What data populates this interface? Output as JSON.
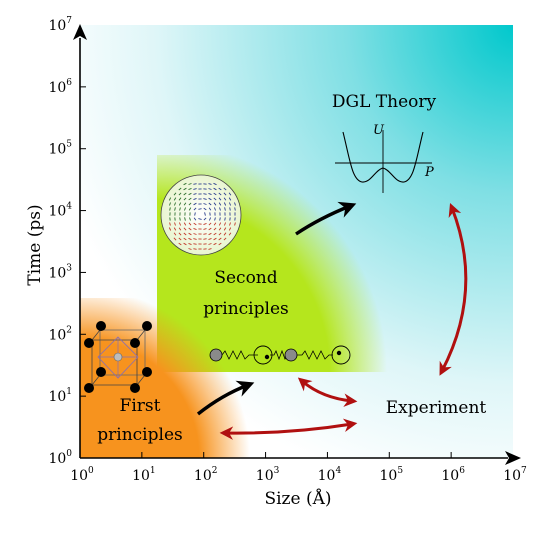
{
  "axes": {
    "xlabel": "Size (Å)",
    "ylabel": "Time (ps)",
    "x_ticks": [
      {
        "base": "10",
        "exp": "0"
      },
      {
        "base": "10",
        "exp": "1"
      },
      {
        "base": "10",
        "exp": "2"
      },
      {
        "base": "10",
        "exp": "3"
      },
      {
        "base": "10",
        "exp": "4"
      },
      {
        "base": "10",
        "exp": "5"
      },
      {
        "base": "10",
        "exp": "6"
      },
      {
        "base": "10",
        "exp": "7"
      }
    ],
    "y_ticks": [
      {
        "base": "10",
        "exp": "0"
      },
      {
        "base": "10",
        "exp": "1"
      },
      {
        "base": "10",
        "exp": "2"
      },
      {
        "base": "10",
        "exp": "3"
      },
      {
        "base": "10",
        "exp": "4"
      },
      {
        "base": "10",
        "exp": "5"
      },
      {
        "base": "10",
        "exp": "6"
      },
      {
        "base": "10",
        "exp": "7"
      }
    ]
  },
  "regions": {
    "dgl_theory": "DGL Theory",
    "second_principles": [
      "Second",
      "principles"
    ],
    "first_principles": [
      "First",
      "principles"
    ],
    "experiment": "Experiment"
  },
  "potential": {
    "u_label": "U",
    "p_label": "P"
  },
  "colors": {
    "first_principles": "#f7931e",
    "second_principles": "#b5e61d",
    "dgl_theory": "#00c8c8",
    "arrow_black": "#000000",
    "arrow_red": "#b01010",
    "cell_atom": "#000000"
  }
}
